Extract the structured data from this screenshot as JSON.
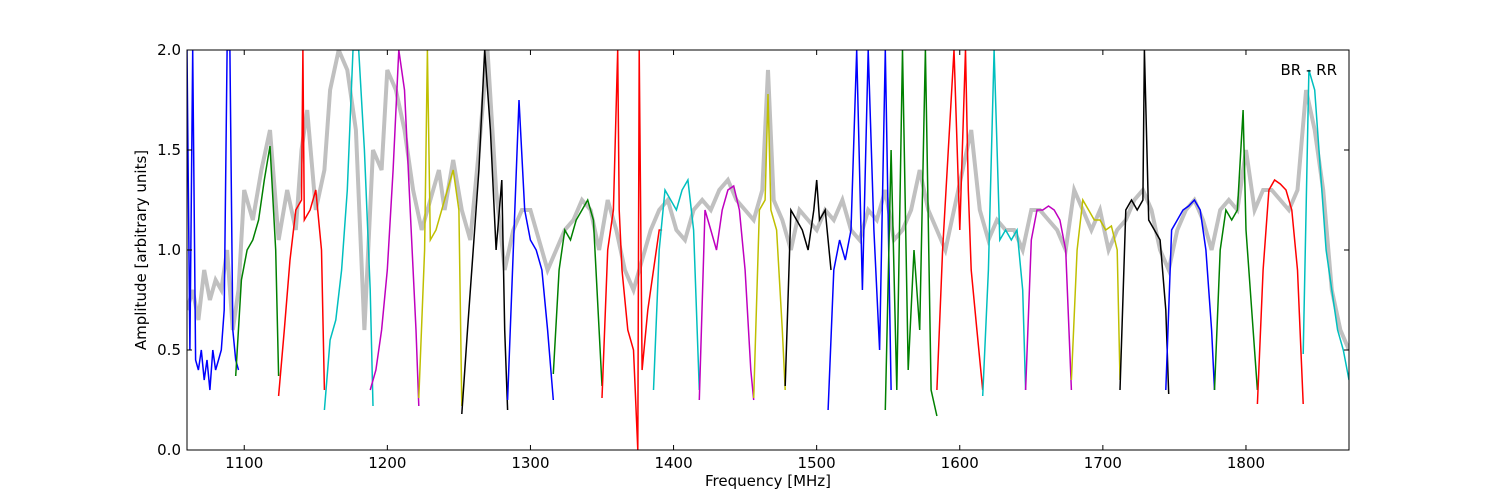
{
  "chart_data": {
    "type": "line",
    "title": "",
    "xlabel": "Frequency [MHz]",
    "ylabel": "Amplitude [arbitrary units]",
    "xlim": [
      1060,
      1872
    ],
    "ylim": [
      0.0,
      2.0
    ],
    "xticks": [
      1100,
      1200,
      1300,
      1400,
      1500,
      1600,
      1700,
      1800
    ],
    "xtick_labels": [
      "1100",
      "1200",
      "1300",
      "1400",
      "1500",
      "1600",
      "1700",
      "1800"
    ],
    "yticks": [
      0.0,
      0.5,
      1.0,
      1.5,
      2.0
    ],
    "ytick_labels": [
      "0.0",
      "0.5",
      "1.0",
      "1.5",
      "2.0"
    ],
    "annotation": "BR - RR",
    "grid": false,
    "reference_color": "#c0c0c0",
    "reference": {
      "x": [
        1060,
        1064,
        1068,
        1072,
        1076,
        1080,
        1084,
        1088,
        1092,
        1096,
        1100,
        1106,
        1112,
        1118,
        1124,
        1130,
        1136,
        1140,
        1144,
        1150,
        1156,
        1160,
        1166,
        1172,
        1178,
        1184,
        1190,
        1196,
        1200,
        1206,
        1212,
        1218,
        1224,
        1230,
        1236,
        1240,
        1246,
        1252,
        1258,
        1264,
        1270,
        1276,
        1282,
        1288,
        1294,
        1300,
        1306,
        1312,
        1318,
        1324,
        1330,
        1336,
        1342,
        1348,
        1354,
        1360,
        1366,
        1372,
        1378,
        1384,
        1390,
        1396,
        1402,
        1408,
        1414,
        1420,
        1426,
        1432,
        1438,
        1444,
        1450,
        1456,
        1462,
        1466,
        1470,
        1476,
        1482,
        1488,
        1494,
        1500,
        1506,
        1512,
        1518,
        1524,
        1530,
        1536,
        1542,
        1548,
        1554,
        1560,
        1566,
        1572,
        1578,
        1584,
        1590,
        1596,
        1602,
        1608,
        1614,
        1620,
        1626,
        1632,
        1638,
        1644,
        1650,
        1656,
        1662,
        1668,
        1674,
        1680,
        1686,
        1692,
        1698,
        1704,
        1710,
        1716,
        1722,
        1728,
        1734,
        1740,
        1746,
        1752,
        1758,
        1764,
        1770,
        1776,
        1782,
        1788,
        1794,
        1800,
        1806,
        1812,
        1818,
        1824,
        1830,
        1836,
        1842,
        1848,
        1854,
        1860,
        1866,
        1872
      ],
      "y": [
        0.7,
        0.8,
        0.65,
        0.9,
        0.75,
        0.85,
        0.8,
        1.0,
        0.6,
        0.8,
        1.3,
        1.15,
        1.4,
        1.6,
        1.05,
        1.3,
        1.1,
        1.5,
        1.7,
        1.2,
        1.4,
        1.8,
        2.0,
        1.9,
        1.6,
        0.6,
        1.5,
        1.4,
        1.9,
        1.8,
        1.6,
        1.3,
        1.1,
        1.25,
        1.4,
        1.2,
        1.45,
        1.2,
        1.05,
        1.5,
        2.0,
        1.3,
        0.9,
        1.1,
        1.2,
        1.2,
        1.05,
        0.9,
        1.0,
        1.1,
        1.15,
        1.25,
        1.2,
        1.0,
        1.25,
        1.1,
        0.9,
        0.8,
        0.95,
        1.1,
        1.2,
        1.25,
        1.1,
        1.05,
        1.2,
        1.25,
        1.2,
        1.3,
        1.35,
        1.25,
        1.2,
        1.15,
        1.3,
        1.9,
        1.25,
        1.15,
        1.0,
        1.2,
        1.15,
        1.1,
        1.2,
        1.15,
        1.25,
        1.1,
        1.05,
        1.2,
        1.15,
        1.3,
        1.05,
        1.1,
        1.2,
        1.4,
        1.2,
        1.1,
        1.0,
        1.2,
        1.4,
        1.6,
        1.2,
        1.05,
        1.15,
        1.1,
        1.1,
        1.0,
        1.2,
        1.2,
        1.15,
        1.1,
        1.0,
        1.3,
        1.2,
        1.1,
        1.2,
        1.0,
        1.1,
        1.15,
        1.25,
        1.3,
        1.2,
        1.0,
        0.9,
        1.1,
        1.2,
        1.25,
        1.15,
        1.0,
        1.2,
        1.25,
        1.2,
        1.5,
        1.2,
        1.3,
        1.3,
        1.25,
        1.2,
        1.3,
        1.8,
        1.6,
        1.3,
        0.8,
        0.6,
        0.5
      ]
    },
    "series": [
      {
        "color": "#0000ff",
        "x": [
          1060,
          1062,
          1064,
          1066,
          1068,
          1070,
          1072,
          1074,
          1076,
          1078,
          1080,
          1082,
          1084,
          1086,
          1088,
          1090,
          1092,
          1094,
          1096
        ],
        "y": [
          2.0,
          0.5,
          2.0,
          0.45,
          0.4,
          0.5,
          0.35,
          0.45,
          0.3,
          0.5,
          0.4,
          0.45,
          0.5,
          0.7,
          2.0,
          2.0,
          0.6,
          0.45,
          0.4
        ]
      },
      {
        "color": "#008000",
        "x": [
          1094,
          1098,
          1102,
          1106,
          1110,
          1114,
          1118,
          1122,
          1124
        ],
        "y": [
          0.37,
          0.85,
          1.0,
          1.05,
          1.15,
          1.35,
          1.52,
          1.0,
          0.37
        ]
      },
      {
        "color": "#ff0000",
        "x": [
          1124,
          1128,
          1132,
          1136,
          1140,
          1141,
          1142,
          1146,
          1150,
          1154,
          1156
        ],
        "y": [
          0.27,
          0.6,
          0.95,
          1.2,
          1.25,
          2.0,
          1.15,
          1.2,
          1.3,
          1.0,
          0.3
        ]
      },
      {
        "color": "#00bfbf",
        "x": [
          1156,
          1160,
          1164,
          1168,
          1172,
          1176,
          1180,
          1184,
          1188,
          1190
        ],
        "y": [
          0.2,
          0.55,
          0.65,
          0.9,
          1.3,
          2.0,
          2.0,
          1.5,
          0.8,
          0.22
        ]
      },
      {
        "color": "#bf00bf",
        "x": [
          1188,
          1192,
          1196,
          1200,
          1204,
          1208,
          1212,
          1216,
          1220,
          1222
        ],
        "y": [
          0.3,
          0.4,
          0.6,
          0.9,
          1.4,
          2.0,
          1.8,
          1.2,
          0.6,
          0.22
        ]
      },
      {
        "color": "#bfbf00",
        "x": [
          1222,
          1226,
          1228,
          1230,
          1234,
          1238,
          1242,
          1246,
          1250,
          1252
        ],
        "y": [
          0.26,
          1.0,
          2.0,
          1.05,
          1.1,
          1.2,
          1.3,
          1.4,
          1.2,
          0.22
        ]
      },
      {
        "color": "#000000",
        "x": [
          1252,
          1256,
          1260,
          1264,
          1268,
          1272,
          1276,
          1280,
          1282,
          1284
        ],
        "y": [
          0.18,
          0.6,
          1.0,
          1.4,
          2.0,
          1.6,
          1.0,
          1.35,
          0.6,
          0.2
        ]
      },
      {
        "color": "#0000ff",
        "x": [
          1284,
          1288,
          1292,
          1296,
          1300,
          1304,
          1308,
          1312,
          1316
        ],
        "y": [
          0.25,
          1.0,
          1.75,
          1.2,
          1.05,
          1.0,
          0.9,
          0.6,
          0.25
        ]
      },
      {
        "color": "#008000",
        "x": [
          1316,
          1320,
          1324,
          1328,
          1332,
          1336,
          1340,
          1344,
          1348,
          1350
        ],
        "y": [
          0.38,
          0.9,
          1.1,
          1.05,
          1.15,
          1.2,
          1.25,
          1.15,
          0.6,
          0.32
        ]
      },
      {
        "color": "#ff0000",
        "x": [
          1350,
          1354,
          1358,
          1361,
          1362,
          1364,
          1368,
          1372,
          1375,
          1376,
          1378,
          1382,
          1386,
          1390,
          1392
        ],
        "y": [
          0.26,
          1.0,
          1.2,
          2.0,
          1.2,
          0.9,
          0.6,
          0.5,
          0.0,
          2.0,
          0.4,
          0.7,
          0.9,
          1.1,
          1.1
        ]
      },
      {
        "color": "#00bfbf",
        "x": [
          1386,
          1390,
          1394,
          1398,
          1402,
          1406,
          1410,
          1414,
          1418
        ],
        "y": [
          0.3,
          1.0,
          1.3,
          1.25,
          1.2,
          1.3,
          1.35,
          1.1,
          0.3
        ]
      },
      {
        "color": "#bf00bf",
        "x": [
          1418,
          1422,
          1426,
          1430,
          1434,
          1438,
          1442,
          1446,
          1450,
          1454,
          1456
        ],
        "y": [
          0.25,
          1.2,
          1.1,
          1.0,
          1.2,
          1.3,
          1.32,
          1.2,
          0.9,
          0.4,
          0.25
        ]
      },
      {
        "color": "#bfbf00",
        "x": [
          1456,
          1460,
          1464,
          1466,
          1468,
          1472,
          1476,
          1478
        ],
        "y": [
          0.26,
          1.2,
          1.25,
          1.78,
          1.2,
          1.1,
          0.6,
          0.3
        ]
      },
      {
        "color": "#000000",
        "x": [
          1478,
          1482,
          1486,
          1490,
          1494,
          1498,
          1500,
          1502,
          1506,
          1510
        ],
        "y": [
          0.32,
          1.2,
          1.15,
          1.1,
          1.0,
          1.2,
          1.35,
          1.15,
          1.2,
          0.9
        ]
      },
      {
        "color": "#0000ff",
        "x": [
          1508,
          1512,
          1516,
          1520,
          1524,
          1528,
          1532,
          1536,
          1540,
          1544,
          1548,
          1552
        ],
        "y": [
          0.2,
          0.9,
          1.05,
          0.95,
          1.1,
          2.0,
          0.8,
          2.0,
          1.1,
          0.5,
          2.0,
          0.3
        ]
      },
      {
        "color": "#008000",
        "x": [
          1548,
          1552,
          1556,
          1560,
          1564,
          1568,
          1572,
          1576,
          1580,
          1584
        ],
        "y": [
          0.2,
          1.5,
          0.3,
          2.0,
          0.4,
          1.0,
          0.6,
          2.0,
          0.3,
          0.17
        ]
      },
      {
        "color": "#ff0000",
        "x": [
          1584,
          1588,
          1592,
          1596,
          1600,
          1604,
          1606,
          1608,
          1612,
          1616
        ],
        "y": [
          0.3,
          1.0,
          1.5,
          2.0,
          1.1,
          2.0,
          1.3,
          0.9,
          0.6,
          0.3
        ]
      },
      {
        "color": "#00bfbf",
        "x": [
          1616,
          1620,
          1624,
          1628,
          1632,
          1636,
          1640,
          1644,
          1646
        ],
        "y": [
          0.27,
          0.9,
          2.0,
          1.05,
          1.1,
          1.05,
          1.1,
          0.8,
          0.3
        ]
      },
      {
        "color": "#bf00bf",
        "x": [
          1646,
          1650,
          1654,
          1658,
          1662,
          1666,
          1670,
          1674,
          1678
        ],
        "y": [
          0.3,
          1.05,
          1.2,
          1.2,
          1.22,
          1.2,
          1.15,
          1.0,
          0.3
        ]
      },
      {
        "color": "#bfbf00",
        "x": [
          1678,
          1682,
          1686,
          1690,
          1694,
          1698,
          1702,
          1706,
          1710,
          1712
        ],
        "y": [
          0.35,
          1.0,
          1.25,
          1.2,
          1.15,
          1.15,
          1.1,
          1.12,
          1.0,
          0.35
        ]
      },
      {
        "color": "#000000",
        "x": [
          1712,
          1716,
          1720,
          1724,
          1728,
          1729,
          1732,
          1736,
          1740,
          1744,
          1746
        ],
        "y": [
          0.3,
          1.2,
          1.25,
          1.2,
          1.25,
          2.0,
          1.15,
          1.1,
          1.05,
          0.7,
          0.28
        ]
      },
      {
        "color": "#0000ff",
        "x": [
          1744,
          1748,
          1752,
          1756,
          1760,
          1764,
          1768,
          1772,
          1776,
          1778
        ],
        "y": [
          0.3,
          1.1,
          1.15,
          1.2,
          1.22,
          1.25,
          1.2,
          1.0,
          0.6,
          0.3
        ]
      },
      {
        "color": "#008000",
        "x": [
          1778,
          1782,
          1786,
          1790,
          1794,
          1798,
          1800,
          1804,
          1808
        ],
        "y": [
          0.3,
          1.0,
          1.2,
          1.15,
          1.2,
          1.7,
          1.1,
          0.7,
          0.3
        ]
      },
      {
        "color": "#ff0000",
        "x": [
          1808,
          1812,
          1816,
          1820,
          1824,
          1828,
          1832,
          1836,
          1840
        ],
        "y": [
          0.23,
          0.9,
          1.3,
          1.35,
          1.33,
          1.3,
          1.2,
          0.9,
          0.23
        ]
      },
      {
        "color": "#00bfbf",
        "x": [
          1840,
          1844,
          1848,
          1852,
          1856,
          1860,
          1864,
          1868,
          1872
        ],
        "y": [
          0.48,
          1.9,
          1.8,
          1.4,
          1.0,
          0.8,
          0.6,
          0.5,
          0.35
        ]
      }
    ]
  }
}
